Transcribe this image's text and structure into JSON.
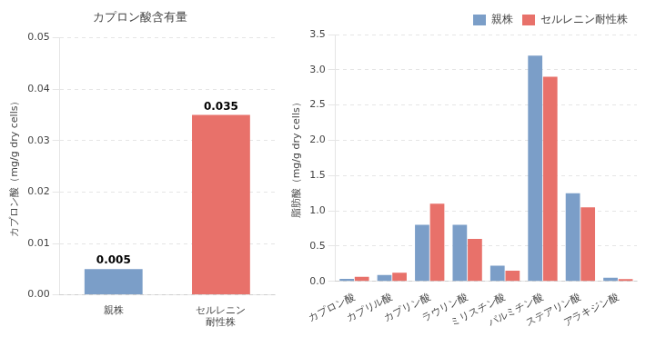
{
  "chart_data": [
    {
      "type": "bar",
      "title": "カプロン酸含有量",
      "categories": [
        "親株",
        "セルレニン\n耐性株"
      ],
      "values": [
        0.005,
        0.035
      ],
      "colors": [
        "#7b9ec8",
        "#e8716a"
      ],
      "ylabel": "カプロン酸（mg/g dry cells）",
      "ylim": [
        0,
        0.05
      ],
      "yticks": [
        {
          "value": 0,
          "label": "0.00"
        },
        0.01,
        0.02,
        0.03,
        0.04,
        0.05
      ],
      "grid": true,
      "data_labels": true
    },
    {
      "type": "bar",
      "categories": [
        "カプロン酸",
        "カプリル酸",
        "カプリン酸",
        "ラウリン酸",
        "ミリスチン酸",
        "パルミチン酸",
        "ステアリン酸",
        "アラキジン酸"
      ],
      "series": [
        {
          "name": "親株",
          "color": "#7b9ec8",
          "values": [
            0.035,
            0.09,
            0.8,
            0.8,
            0.22,
            3.2,
            1.25,
            0.05
          ]
        },
        {
          "name": "セルレニン耐性株",
          "color": "#e8716a",
          "values": [
            0.065,
            0.12,
            1.1,
            0.6,
            0.15,
            2.9,
            1.05,
            0.03
          ]
        }
      ],
      "ylabel": "脂肪酸（mg/g dry cells）",
      "ylim": [
        0,
        3.5
      ],
      "yticks": [
        {
          "value": 0,
          "label": "0.0"
        },
        0.5,
        {
          "value": 1,
          "label": "1.0"
        },
        1.5,
        {
          "value": 2,
          "label": "2.0"
        },
        2.5,
        {
          "value": 3,
          "label": "3.0"
        },
        3.5
      ],
      "grid": true,
      "legend": "upper right"
    }
  ]
}
